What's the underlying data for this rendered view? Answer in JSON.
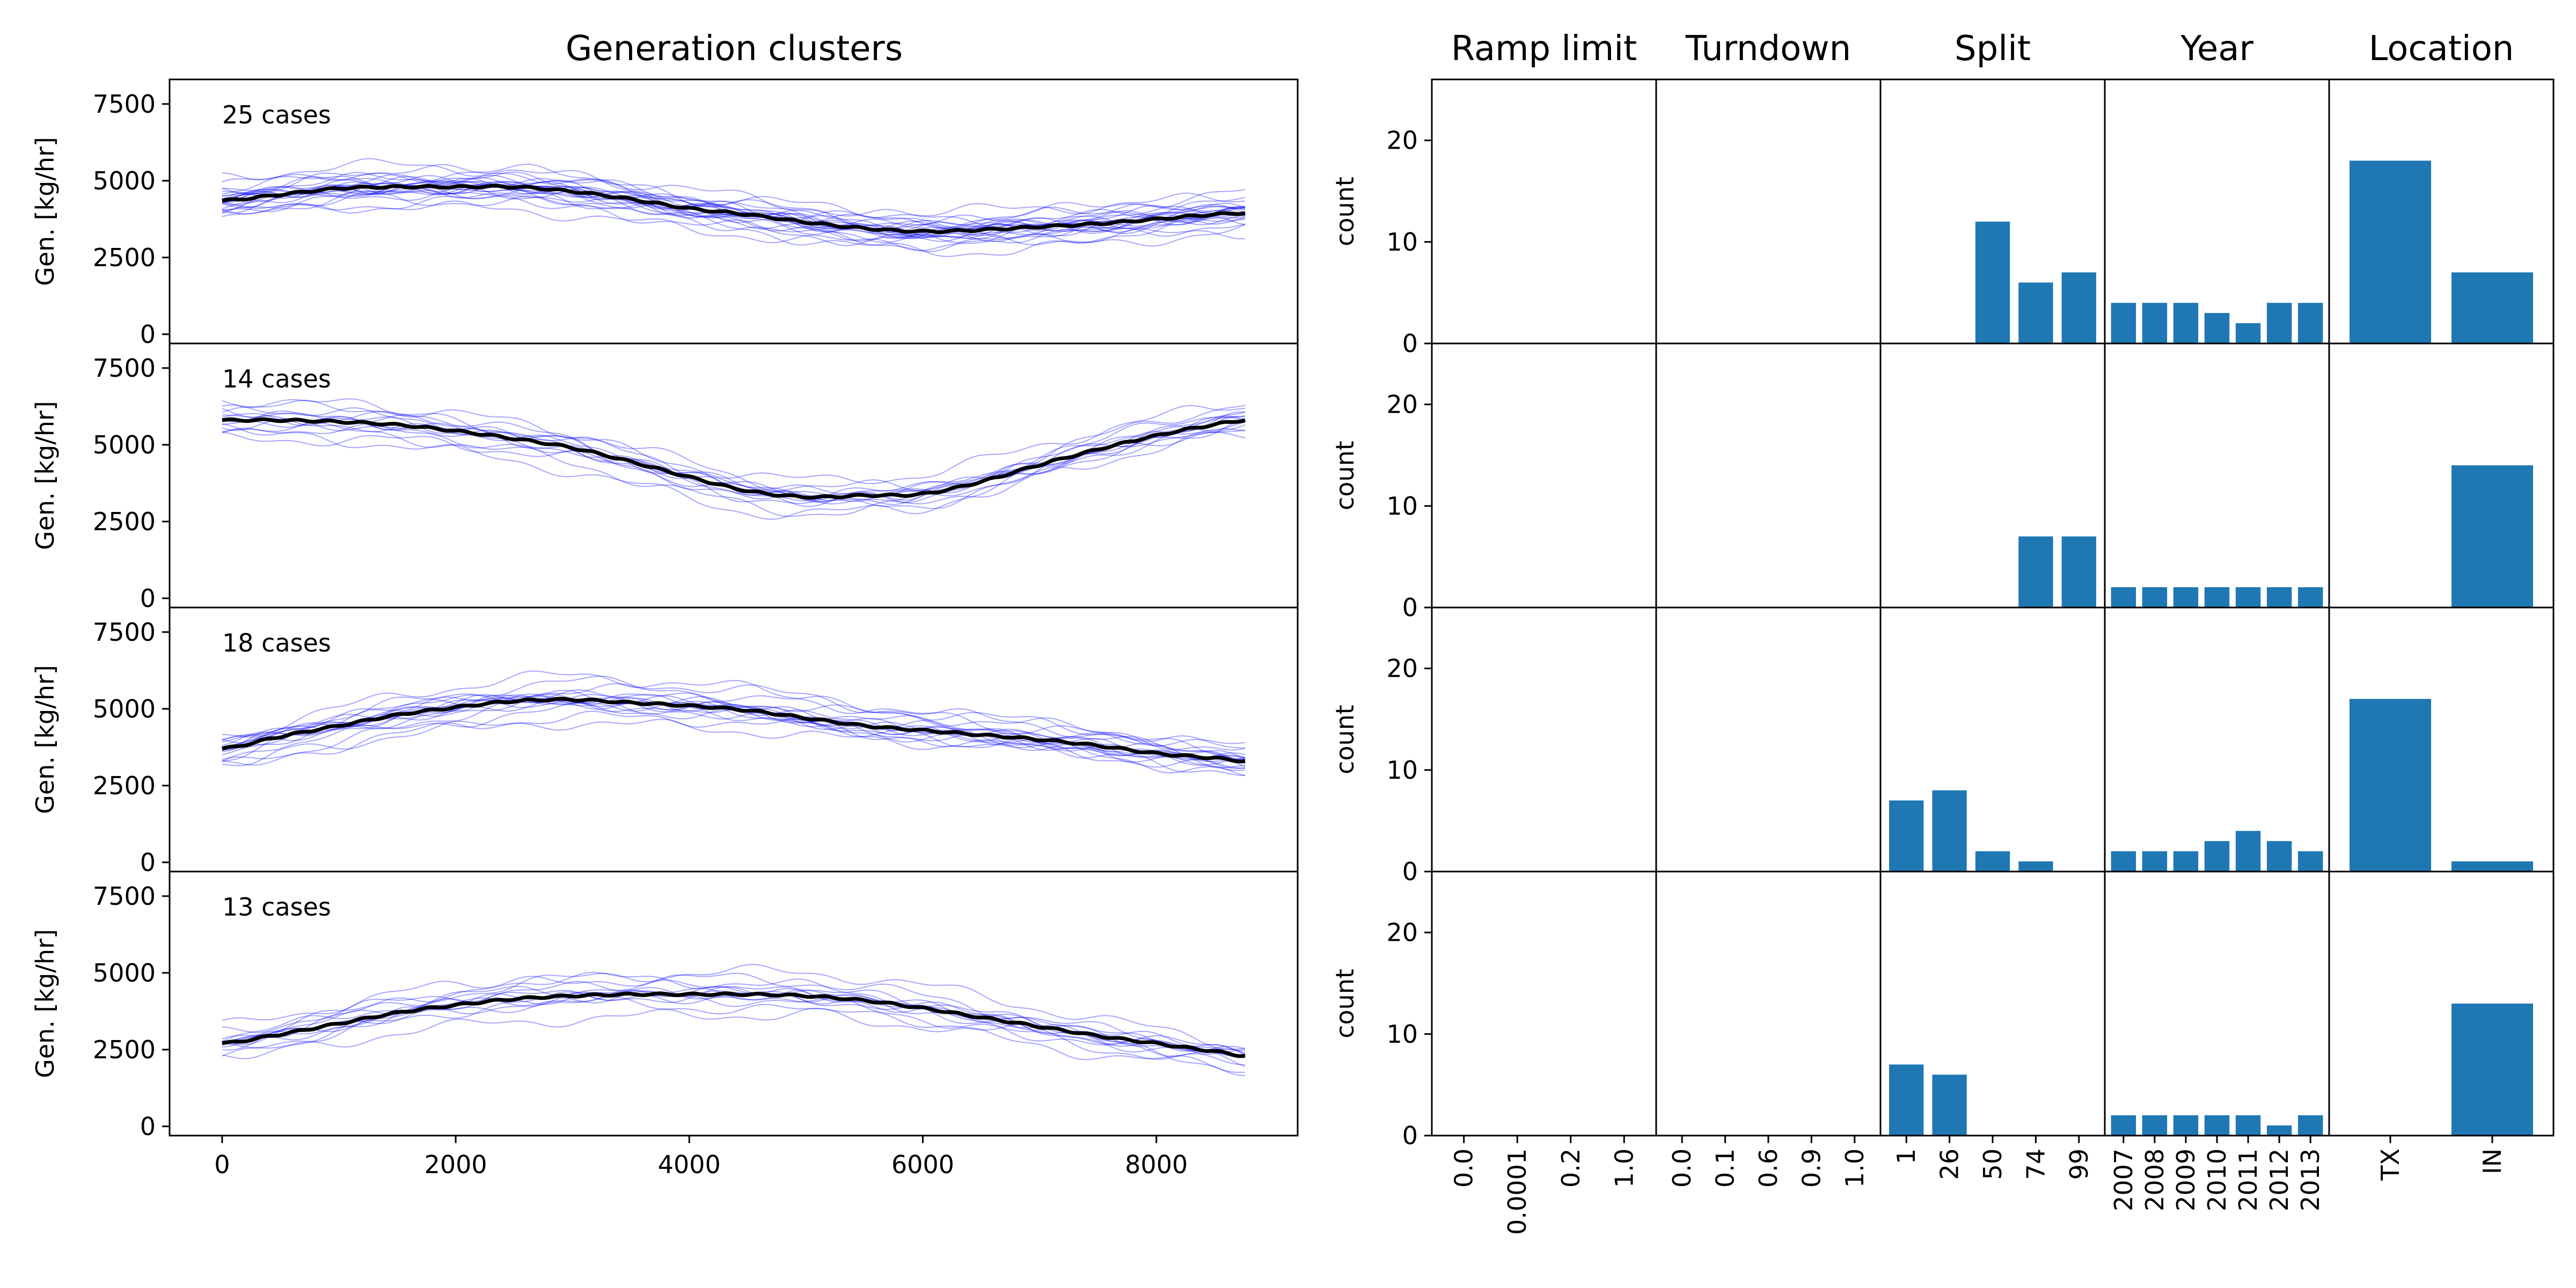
{
  "chart_data": [
    {
      "type": "line",
      "title": "Generation clusters",
      "ylabel": "Gen. [kg/hr]",
      "xlim": [
        -450,
        9210
      ],
      "ylim": [
        -300,
        8300
      ],
      "xticks": [
        0,
        2000,
        4000,
        6000,
        8000
      ],
      "xtick_labels": [
        "0",
        "2000",
        "4000",
        "6000",
        "8000"
      ],
      "yticks": [
        0,
        2500,
        5000,
        7500
      ],
      "ytick_labels": [
        "0",
        "2500",
        "5000",
        "7500"
      ],
      "line_color": "#0000ff",
      "mean_color": "#000000",
      "clusters": [
        {
          "label": "25 cases",
          "mean": {
            "x": [
              0,
              500,
              1000,
              1500,
              2000,
              2500,
              3000,
              3500,
              4000,
              4500,
              5000,
              5500,
              6000,
              6500,
              7000,
              7500,
              8000,
              8500,
              8760
            ],
            "y": [
              4350,
              4550,
              4750,
              4800,
              4800,
              4800,
              4650,
              4400,
              4100,
              3900,
              3650,
              3450,
              3350,
              3400,
              3500,
              3600,
              3750,
              3900,
              3950
            ]
          }
        },
        {
          "label": "14 cases",
          "mean": {
            "x": [
              0,
              500,
              1000,
              1500,
              2000,
              2500,
              3000,
              3500,
              4000,
              4500,
              5000,
              5500,
              6000,
              6500,
              7000,
              7500,
              8000,
              8500,
              8760
            ],
            "y": [
              5800,
              5800,
              5750,
              5650,
              5450,
              5200,
              4900,
              4450,
              3950,
              3500,
              3300,
              3350,
              3400,
              3800,
              4350,
              4850,
              5300,
              5650,
              5800
            ]
          }
        },
        {
          "label": "18 cases",
          "mean": {
            "x": [
              0,
              500,
              1000,
              1500,
              2000,
              2500,
              3000,
              3500,
              4000,
              4500,
              5000,
              5500,
              6000,
              6500,
              7000,
              7500,
              8000,
              8500,
              8760
            ],
            "y": [
              3700,
              4100,
              4450,
              4800,
              5050,
              5250,
              5300,
              5200,
              5100,
              4950,
              4700,
              4450,
              4300,
              4150,
              4000,
              3800,
              3550,
              3400,
              3300
            ]
          }
        },
        {
          "label": "13 cases",
          "mean": {
            "x": [
              0,
              500,
              1000,
              1500,
              2000,
              2500,
              3000,
              3500,
              4000,
              4500,
              5000,
              5500,
              6000,
              6500,
              7000,
              7500,
              8000,
              8500,
              8760
            ],
            "y": [
              2700,
              3000,
              3350,
              3700,
              3950,
              4150,
              4250,
              4300,
              4300,
              4300,
              4250,
              4100,
              3850,
              3550,
              3250,
              2950,
              2700,
              2450,
              2300
            ]
          }
        }
      ]
    },
    {
      "type": "bar",
      "ylabel": "count",
      "ylim": [
        0,
        26
      ],
      "yticks": [
        0,
        10,
        20
      ],
      "ytick_labels": [
        "0",
        "10",
        "20"
      ],
      "bar_color": "#1f77b4",
      "columns": [
        {
          "title": "Ramp limit",
          "categories": [
            "0.0",
            "0.0001",
            "0.2",
            "1.0"
          ]
        },
        {
          "title": "Turndown",
          "categories": [
            "0.0",
            "0.1",
            "0.6",
            "0.9",
            "1.0"
          ]
        },
        {
          "title": "Split",
          "categories": [
            "1",
            "26",
            "50",
            "74",
            "99"
          ]
        },
        {
          "title": "Year",
          "categories": [
            "2007",
            "2008",
            "2009",
            "2010",
            "2011",
            "2012",
            "2013"
          ]
        },
        {
          "title": "Location",
          "categories": [
            "TX",
            "IN"
          ]
        }
      ],
      "rows": [
        [
          [
            0,
            0,
            0,
            0
          ],
          [
            0,
            0,
            0,
            0,
            0
          ],
          [
            0,
            0,
            12,
            6,
            7
          ],
          [
            4,
            4,
            4,
            3,
            2,
            4,
            4
          ],
          [
            18,
            7
          ]
        ],
        [
          [
            0,
            0,
            0,
            0
          ],
          [
            0,
            0,
            0,
            0,
            0
          ],
          [
            0,
            0,
            0,
            7,
            7
          ],
          [
            2,
            2,
            2,
            2,
            2,
            2,
            2
          ],
          [
            0,
            14
          ]
        ],
        [
          [
            0,
            0,
            0,
            0
          ],
          [
            0,
            0,
            0,
            0,
            0
          ],
          [
            7,
            8,
            2,
            1,
            0
          ],
          [
            2,
            2,
            2,
            3,
            4,
            3,
            2
          ],
          [
            17,
            1
          ]
        ],
        [
          [
            0,
            0,
            0,
            0
          ],
          [
            0,
            0,
            0,
            0,
            0
          ],
          [
            7,
            6,
            0,
            0,
            0
          ],
          [
            2,
            2,
            2,
            2,
            2,
            1,
            2
          ],
          [
            0,
            13
          ]
        ]
      ]
    }
  ]
}
